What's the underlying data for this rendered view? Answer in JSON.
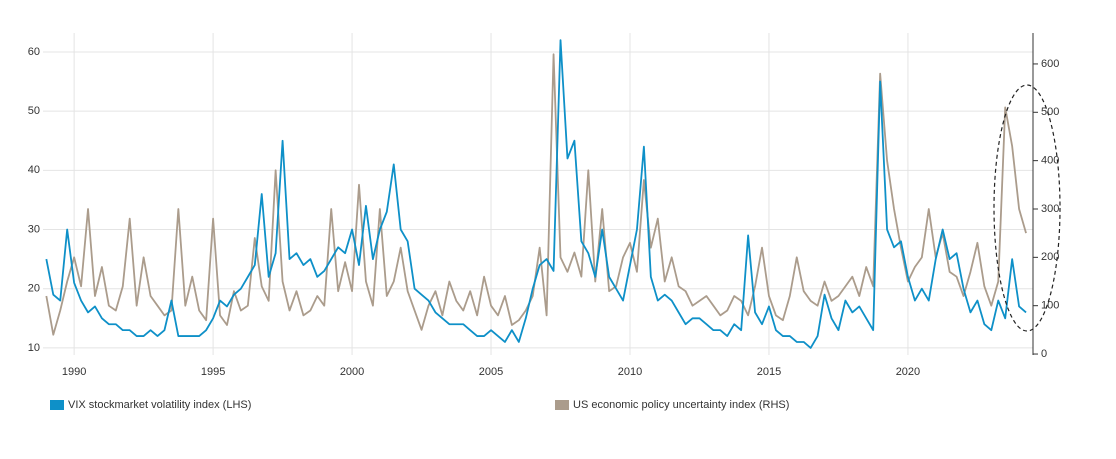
{
  "chart_data": {
    "type": "line",
    "x": [
      1989,
      1989.25,
      1989.5,
      1989.75,
      1990,
      1990.25,
      1990.5,
      1990.75,
      1991,
      1991.25,
      1991.5,
      1991.75,
      1992,
      1992.25,
      1992.5,
      1992.75,
      1993,
      1993.25,
      1993.5,
      1993.75,
      1994,
      1994.25,
      1994.5,
      1994.75,
      1995,
      1995.25,
      1995.5,
      1995.75,
      1996,
      1996.25,
      1996.5,
      1996.75,
      1997,
      1997.25,
      1997.5,
      1997.75,
      1998,
      1998.25,
      1998.5,
      1998.75,
      1999,
      1999.25,
      1999.5,
      1999.75,
      2000,
      2000.25,
      2000.5,
      2000.75,
      2001,
      2001.25,
      2001.5,
      2001.75,
      2002,
      2002.25,
      2002.5,
      2002.75,
      2003,
      2003.25,
      2003.5,
      2003.75,
      2004,
      2004.25,
      2004.5,
      2004.75,
      2005,
      2005.25,
      2005.5,
      2005.75,
      2006,
      2006.25,
      2006.5,
      2006.75,
      2007,
      2007.25,
      2007.5,
      2007.75,
      2008,
      2008.25,
      2008.5,
      2008.75,
      2009,
      2009.25,
      2009.5,
      2009.75,
      2010,
      2010.25,
      2010.5,
      2010.75,
      2011,
      2011.25,
      2011.5,
      2011.75,
      2012,
      2012.25,
      2012.5,
      2012.75,
      2013,
      2013.25,
      2013.5,
      2013.75,
      2014,
      2014.25,
      2014.5,
      2014.75,
      2015,
      2015.25,
      2015.5,
      2015.75,
      2016,
      2016.25,
      2016.5,
      2016.75,
      2017,
      2017.25,
      2017.5,
      2017.75,
      2018,
      2018.25,
      2018.5,
      2018.75,
      2019,
      2019.25,
      2019.5,
      2019.75,
      2020,
      2020.25,
      2020.5,
      2020.75,
      2021,
      2021.25,
      2021.5,
      2021.75,
      2022,
      2022.25,
      2022.5,
      2022.75,
      2023,
      2023.25,
      2023.5,
      2023.75,
      2024,
      2024.25
    ],
    "series": [
      {
        "name": "US economic policy uncertainty index (RHS)",
        "color": "#ab9c8c",
        "axis": "y2",
        "values": [
          120,
          40,
          90,
          150,
          200,
          140,
          300,
          120,
          180,
          100,
          90,
          140,
          280,
          100,
          200,
          120,
          100,
          80,
          90,
          300,
          100,
          160,
          90,
          70,
          280,
          80,
          60,
          130,
          90,
          100,
          240,
          140,
          110,
          380,
          150,
          90,
          130,
          80,
          90,
          120,
          100,
          300,
          130,
          190,
          130,
          350,
          150,
          100,
          300,
          120,
          150,
          220,
          130,
          90,
          50,
          100,
          130,
          80,
          150,
          110,
          90,
          130,
          80,
          160,
          100,
          80,
          120,
          60,
          70,
          90,
          120,
          220,
          80,
          620,
          200,
          170,
          210,
          160,
          380,
          150,
          300,
          130,
          140,
          200,
          230,
          170,
          360,
          220,
          280,
          150,
          200,
          140,
          130,
          100,
          110,
          120,
          100,
          80,
          90,
          120,
          110,
          80,
          140,
          220,
          120,
          80,
          70,
          120,
          200,
          130,
          110,
          100,
          150,
          110,
          120,
          140,
          160,
          120,
          180,
          140,
          580,
          400,
          300,
          220,
          150,
          180,
          200,
          300,
          200,
          250,
          170,
          160,
          120,
          170,
          230,
          140,
          100,
          150,
          510,
          430,
          300,
          250
        ]
      },
      {
        "name": "VIX stockmarket volatility index (LHS)",
        "color": "#0e90c8",
        "values": [
          25,
          19,
          18,
          30,
          21,
          18,
          16,
          17,
          15,
          14,
          14,
          13,
          13,
          12,
          12,
          13,
          12,
          13,
          18,
          12,
          12,
          12,
          12,
          13,
          15,
          18,
          17,
          19,
          20,
          22,
          24,
          36,
          22,
          26,
          45,
          25,
          26,
          24,
          25,
          22,
          23,
          25,
          27,
          26,
          30,
          24,
          34,
          25,
          30,
          33,
          41,
          30,
          28,
          20,
          19,
          18,
          16,
          15,
          14,
          14,
          14,
          13,
          12,
          12,
          13,
          12,
          11,
          13,
          11,
          15,
          20,
          24,
          25,
          23,
          62,
          42,
          45,
          28,
          26,
          22,
          30,
          22,
          20,
          18,
          24,
          30,
          44,
          22,
          18,
          19,
          18,
          16,
          14,
          15,
          15,
          14,
          13,
          13,
          12,
          14,
          13,
          29,
          16,
          14,
          17,
          13,
          12,
          12,
          11,
          11,
          10,
          12,
          19,
          15,
          13,
          18,
          16,
          17,
          15,
          13,
          55,
          30,
          27,
          28,
          22,
          18,
          20,
          18,
          25,
          30,
          25,
          26,
          20,
          16,
          18,
          14,
          13,
          18,
          15,
          25,
          17,
          16
        ]
      }
    ],
    "xlim": [
      1988.88,
      2024.5
    ],
    "xticks": [
      1990,
      1995,
      2000,
      2005,
      2010,
      2015,
      2020
    ],
    "ylim": [
      8.8,
      63.2
    ],
    "yticks": [
      10,
      20,
      30,
      40,
      50,
      60
    ],
    "y2lim": [
      -2,
      664
    ],
    "y2ticks": [
      0,
      100,
      200,
      300,
      400,
      500,
      600
    ],
    "grid": true
  }
}
